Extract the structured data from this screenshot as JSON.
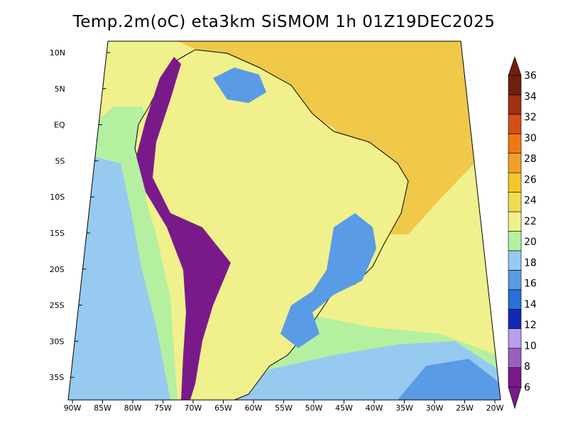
{
  "title": "Temp.2m(oC) eta3km SiSMOM 1h 01Z19DEC2025",
  "lat_labels": [
    "10N",
    "5N",
    "EQ",
    "5S",
    "10S",
    "15S",
    "20S",
    "25S",
    "30S",
    "35S"
  ],
  "lon_labels": [
    "90W",
    "85W",
    "80W",
    "75W",
    "70W",
    "65W",
    "60W",
    "55W",
    "50W",
    "45W",
    "40W",
    "35W",
    "30W",
    "25W",
    "20W"
  ],
  "colorbar": {
    "labels": [
      "6",
      "8",
      "10",
      "12",
      "14",
      "16",
      "18",
      "20",
      "22",
      "24",
      "26",
      "28",
      "30",
      "32",
      "34",
      "36"
    ],
    "colors": [
      "#7a1a8a",
      "#9b5fc0",
      "#b6a0e6",
      "#1428b8",
      "#2a6fd8",
      "#5a9be6",
      "#96caf0",
      "#b4f0a0",
      "#f0f08c",
      "#f0dc50",
      "#f0c828",
      "#f0a028",
      "#f07814",
      "#d25014",
      "#a03010",
      "#6e2010"
    ]
  },
  "colors": {
    "ocean_warm": "#f0c84a",
    "ocean_mid": "#f0f08c",
    "ocean_cool": "#b4f0a0",
    "ocean_cold": "#96caf0",
    "ocean_colder": "#5a9be6",
    "land_main": "#f0f08c",
    "andes_cold": "#7a1a8a",
    "highlands": "#5a9be6"
  }
}
